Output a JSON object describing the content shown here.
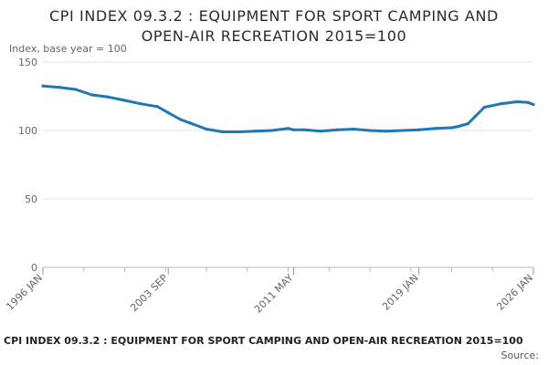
{
  "chart_data": {
    "type": "line",
    "title": "CPI INDEX 09.3.2 : EQUIPMENT FOR SPORT CAMPING AND\nOPEN-AIR RECREATION 2015=100",
    "ylabel": "Index, base year = 100",
    "xlabel": "",
    "ylim": [
      0,
      150
    ],
    "y_ticks": [
      0,
      50,
      100,
      150
    ],
    "x_tick_labels": [
      "1996 JAN",
      "2003 SEP",
      "2011 MAY",
      "2019 JAN",
      "2026 JAN"
    ],
    "x_tick_dates": [
      "1996-01",
      "2003-09",
      "2011-05",
      "2019-01",
      "2026-01"
    ],
    "x_range": [
      "1996-01",
      "2026-01"
    ],
    "grid": "horizontal",
    "legend": "none",
    "line_color": "#1f77b4",
    "series": [
      {
        "x": [
          "1996-01",
          "1997-01",
          "1998-01",
          "1999-01",
          "2000-01",
          "2001-01",
          "2002-01",
          "2003-01",
          "2003-09",
          "2004-06",
          "2005-01",
          "2006-01",
          "2007-01",
          "2008-01",
          "2009-01",
          "2010-01",
          "2011-01",
          "2011-05",
          "2012-01",
          "2013-01",
          "2014-01",
          "2015-01",
          "2016-01",
          "2017-01",
          "2018-01",
          "2019-01",
          "2020-01",
          "2021-01",
          "2021-06",
          "2022-01",
          "2022-06",
          "2023-01",
          "2024-01",
          "2025-01",
          "2025-09",
          "2026-01"
        ],
        "y": [
          132.5,
          131.5,
          130,
          126,
          124.5,
          122,
          119.5,
          117.5,
          113,
          108,
          105.5,
          101,
          99,
          99,
          99.5,
          100,
          101.5,
          100.5,
          100.5,
          99.5,
          100.5,
          101,
          100,
          99.5,
          100,
          100.5,
          101.5,
          102,
          103,
          105,
          110,
          117,
          119.5,
          121,
          120.5,
          119
        ]
      }
    ]
  },
  "footer": {
    "title": "CPI INDEX 09.3.2 : EQUIPMENT FOR SPORT CAMPING AND OPEN-AIR RECREATION 2015=100",
    "source": "Source:"
  }
}
